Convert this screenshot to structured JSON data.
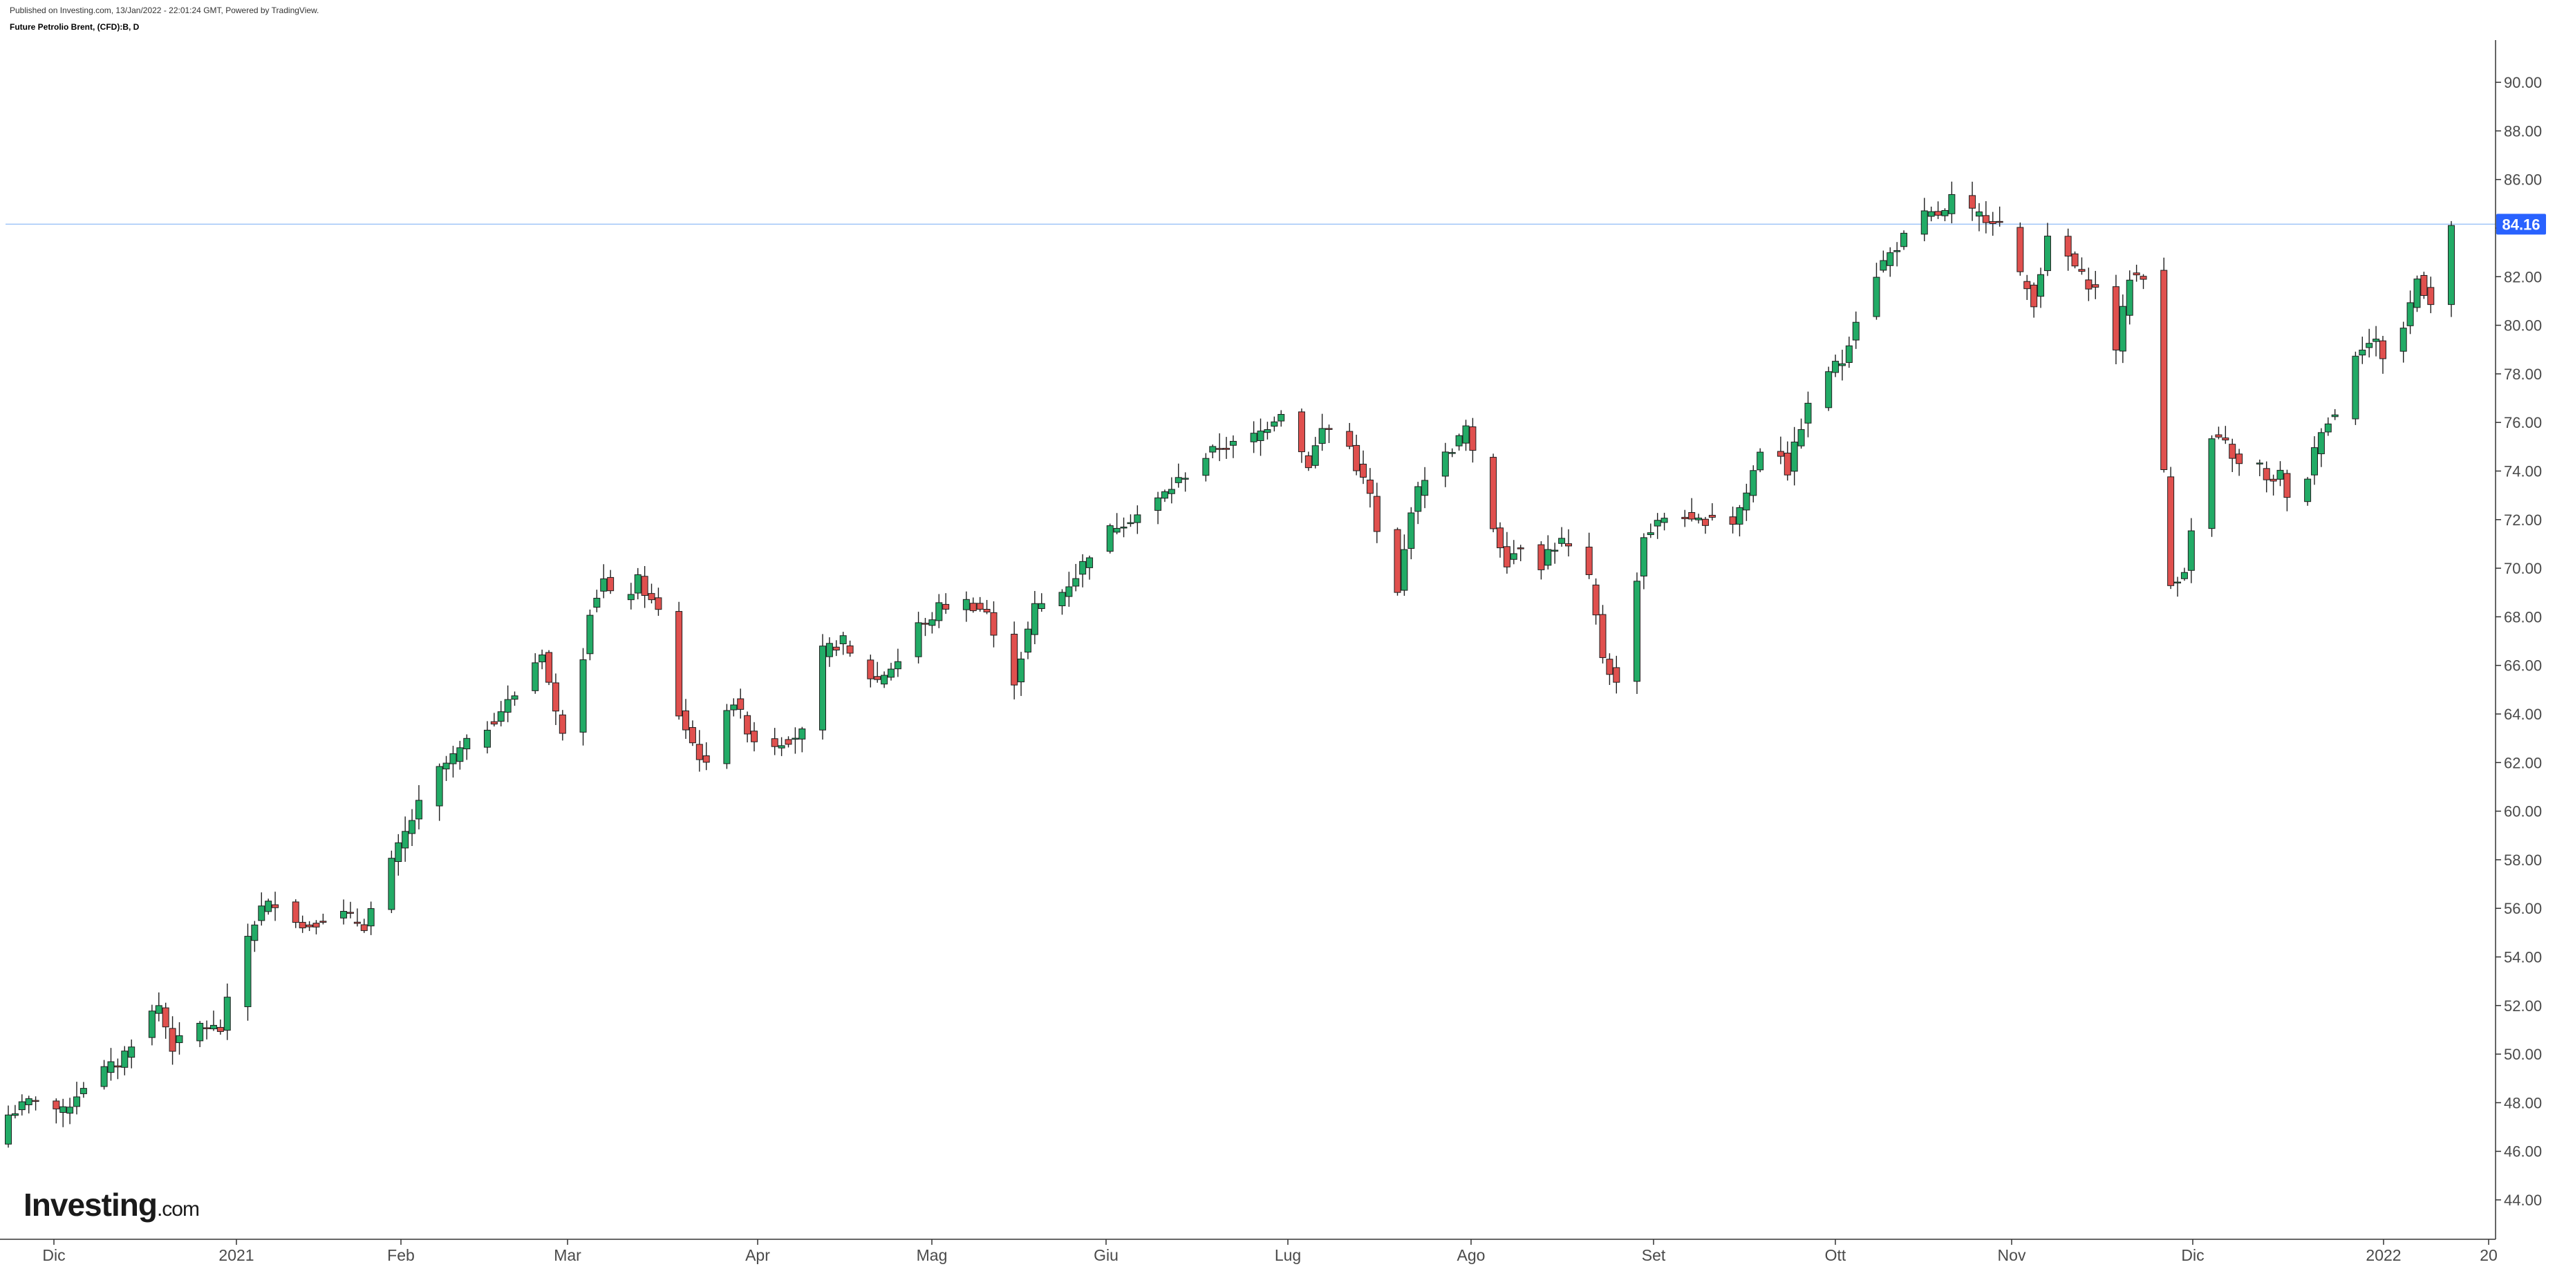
{
  "header": {
    "published": "Published on Investing.com, 13/Jan/2022 - 22:01:24 GMT, Powered by TradingView.",
    "symbol": "Future Petrolio Brent, (CFD):B, D"
  },
  "logo": {
    "brand": "Investing",
    "suffix": ".com"
  },
  "colors": {
    "up": "#22ab66",
    "down": "#e0504e",
    "price_line": "#9fc5f8",
    "price_tag": "#2962ff"
  },
  "chart_data": {
    "type": "candlestick",
    "title": "Future Petrolio Brent, (CFD):B, D",
    "y_ticks": [
      "44.00",
      "46.00",
      "48.00",
      "50.00",
      "52.00",
      "54.00",
      "56.00",
      "58.00",
      "60.00",
      "62.00",
      "64.00",
      "66.00",
      "68.00",
      "70.00",
      "72.00",
      "74.00",
      "76.00",
      "78.00",
      "80.00",
      "82.00",
      "84.00",
      "86.00",
      "88.00",
      "90.00"
    ],
    "x_ticks": [
      "Dic",
      "2021",
      "Feb",
      "Mar",
      "Apr",
      "Mag",
      "Giu",
      "Lug",
      "Ago",
      "Set",
      "Ott",
      "Nov",
      "Dic",
      "2022",
      "20"
    ],
    "ylim": [
      42.5,
      92.0
    ],
    "last_price": "84.16",
    "anchors": [
      {
        "d": 0,
        "v": 47.5
      },
      {
        "d": 4,
        "v": 48.2
      },
      {
        "d": 8,
        "v": 47.6
      },
      {
        "d": 12,
        "v": 49.1
      },
      {
        "d": 16,
        "v": 49.6
      },
      {
        "d": 20,
        "v": 51.4
      },
      {
        "d": 22,
        "v": 52.0
      },
      {
        "d": 24,
        "v": 50.3
      },
      {
        "d": 28,
        "v": 51.2
      },
      {
        "d": 31,
        "v": 51.0
      },
      {
        "d": 34,
        "v": 54.3
      },
      {
        "d": 37,
        "v": 56.0
      },
      {
        "d": 40,
        "v": 56.4
      },
      {
        "d": 43,
        "v": 55.2
      },
      {
        "d": 48,
        "v": 55.9
      },
      {
        "d": 52,
        "v": 55.3
      },
      {
        "d": 57,
        "v": 58.5
      },
      {
        "d": 62,
        "v": 61.4
      },
      {
        "d": 66,
        "v": 62.5
      },
      {
        "d": 70,
        "v": 63.5
      },
      {
        "d": 74,
        "v": 64.8
      },
      {
        "d": 78,
        "v": 66.6
      },
      {
        "d": 80,
        "v": 64.0
      },
      {
        "d": 82,
        "v": 62.8
      },
      {
        "d": 85,
        "v": 68.3
      },
      {
        "d": 87,
        "v": 69.5
      },
      {
        "d": 89,
        "v": 68.2
      },
      {
        "d": 92,
        "v": 69.5
      },
      {
        "d": 94,
        "v": 68.6
      },
      {
        "d": 96,
        "v": 67.8
      },
      {
        "d": 98,
        "v": 64.0
      },
      {
        "d": 100,
        "v": 62.8
      },
      {
        "d": 102,
        "v": 61.8
      },
      {
        "d": 104,
        "v": 64.2
      },
      {
        "d": 106,
        "v": 64.5
      },
      {
        "d": 108,
        "v": 63.4
      },
      {
        "d": 110,
        "v": 62.5
      },
      {
        "d": 112,
        "v": 62.8
      },
      {
        "d": 116,
        "v": 63.2
      },
      {
        "d": 118,
        "v": 66.4
      },
      {
        "d": 122,
        "v": 67.0
      },
      {
        "d": 124,
        "v": 65.8
      },
      {
        "d": 127,
        "v": 65.4
      },
      {
        "d": 130,
        "v": 66.2
      },
      {
        "d": 132,
        "v": 67.9
      },
      {
        "d": 134,
        "v": 67.6
      },
      {
        "d": 136,
        "v": 68.4
      },
      {
        "d": 140,
        "v": 68.6
      },
      {
        "d": 143,
        "v": 68.2
      },
      {
        "d": 145,
        "v": 66.0
      },
      {
        "d": 147,
        "v": 65.4
      },
      {
        "d": 150,
        "v": 68.4
      },
      {
        "d": 153,
        "v": 68.7
      },
      {
        "d": 156,
        "v": 69.7
      },
      {
        "d": 159,
        "v": 71.1
      },
      {
        "d": 162,
        "v": 71.8
      },
      {
        "d": 165,
        "v": 72.2
      },
      {
        "d": 168,
        "v": 72.8
      },
      {
        "d": 171,
        "v": 73.6
      },
      {
        "d": 174,
        "v": 74.4
      },
      {
        "d": 177,
        "v": 75.0
      },
      {
        "d": 180,
        "v": 75.1
      },
      {
        "d": 183,
        "v": 75.6
      },
      {
        "d": 186,
        "v": 76.5
      },
      {
        "d": 188,
        "v": 75.3
      },
      {
        "d": 190,
        "v": 74.3
      },
      {
        "d": 192,
        "v": 75.7
      },
      {
        "d": 195,
        "v": 75.8
      },
      {
        "d": 197,
        "v": 74.2
      },
      {
        "d": 199,
        "v": 73.0
      },
      {
        "d": 201,
        "v": 69.8
      },
      {
        "d": 203,
        "v": 68.9
      },
      {
        "d": 205,
        "v": 72.5
      },
      {
        "d": 207,
        "v": 73.8
      },
      {
        "d": 209,
        "v": 74.3
      },
      {
        "d": 212,
        "v": 75.3
      },
      {
        "d": 213,
        "v": 75.8
      },
      {
        "d": 215,
        "v": 73.5
      },
      {
        "d": 217,
        "v": 71.7
      },
      {
        "d": 219,
        "v": 70.3
      },
      {
        "d": 221,
        "v": 71.0
      },
      {
        "d": 223,
        "v": 69.6
      },
      {
        "d": 225,
        "v": 70.7
      },
      {
        "d": 227,
        "v": 71.1
      },
      {
        "d": 229,
        "v": 70.5
      },
      {
        "d": 231,
        "v": 69.5
      },
      {
        "d": 233,
        "v": 66.4
      },
      {
        "d": 235,
        "v": 65.2
      },
      {
        "d": 237,
        "v": 68.0
      },
      {
        "d": 239,
        "v": 71.3
      },
      {
        "d": 242,
        "v": 72.1
      },
      {
        "d": 244,
        "v": 72.6
      },
      {
        "d": 246,
        "v": 71.8
      },
      {
        "d": 248,
        "v": 72.0
      },
      {
        "d": 250,
        "v": 72.4
      },
      {
        "d": 252,
        "v": 71.9
      },
      {
        "d": 254,
        "v": 73.1
      },
      {
        "d": 256,
        "v": 74.9
      },
      {
        "d": 258,
        "v": 75.5
      },
      {
        "d": 260,
        "v": 74.0
      },
      {
        "d": 262,
        "v": 75.9
      },
      {
        "d": 265,
        "v": 78.0
      },
      {
        "d": 268,
        "v": 78.5
      },
      {
        "d": 271,
        "v": 81.2
      },
      {
        "d": 274,
        "v": 82.6
      },
      {
        "d": 277,
        "v": 83.6
      },
      {
        "d": 280,
        "v": 84.5
      },
      {
        "d": 283,
        "v": 84.6
      },
      {
        "d": 285,
        "v": 85.8
      },
      {
        "d": 287,
        "v": 84.6
      },
      {
        "d": 290,
        "v": 84.4
      },
      {
        "d": 292,
        "v": 84.0
      },
      {
        "d": 294,
        "v": 82.0
      },
      {
        "d": 296,
        "v": 81.0
      },
      {
        "d": 299,
        "v": 84.7
      },
      {
        "d": 301,
        "v": 82.8
      },
      {
        "d": 303,
        "v": 82.0
      },
      {
        "d": 306,
        "v": 81.2
      },
      {
        "d": 308,
        "v": 79.1
      },
      {
        "d": 310,
        "v": 82.0
      },
      {
        "d": 312,
        "v": 82.1
      },
      {
        "d": 313,
        "v": 72.8
      },
      {
        "d": 315,
        "v": 73.9
      },
      {
        "d": 316,
        "v": 69.3
      },
      {
        "d": 318,
        "v": 70.0
      },
      {
        "d": 320,
        "v": 72.9
      },
      {
        "d": 322,
        "v": 75.3
      },
      {
        "d": 324,
        "v": 75.1
      },
      {
        "d": 326,
        "v": 74.2
      },
      {
        "d": 328,
        "v": 75.0
      },
      {
        "d": 330,
        "v": 73.5
      },
      {
        "d": 332,
        "v": 73.9
      },
      {
        "d": 334,
        "v": 71.6
      },
      {
        "d": 336,
        "v": 73.8
      },
      {
        "d": 338,
        "v": 75.8
      },
      {
        "d": 340,
        "v": 76.3
      },
      {
        "d": 342,
        "v": 78.6
      },
      {
        "d": 344,
        "v": 79.2
      },
      {
        "d": 346,
        "v": 79.3
      },
      {
        "d": 348,
        "v": 78.2
      },
      {
        "d": 350,
        "v": 79.9
      },
      {
        "d": 352,
        "v": 81.9
      },
      {
        "d": 354,
        "v": 81.0
      },
      {
        "d": 356,
        "v": 84.7
      },
      {
        "d": 357,
        "v": 84.1
      }
    ]
  }
}
